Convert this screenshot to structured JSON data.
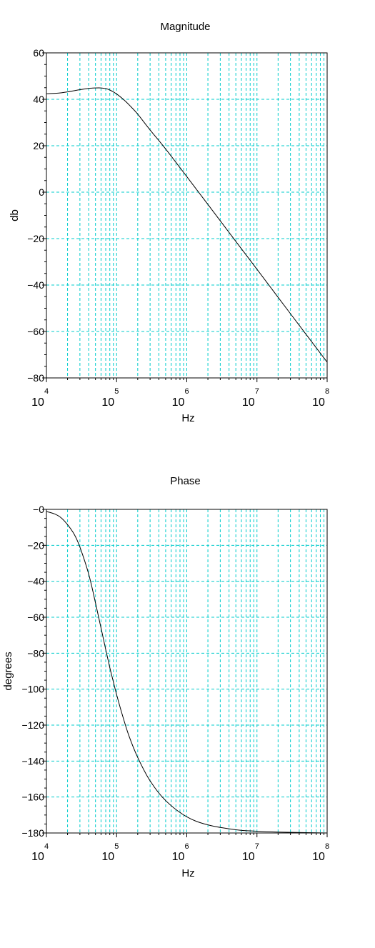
{
  "chart_data": [
    {
      "type": "line",
      "title": "Magnitude",
      "xlabel": "Hz",
      "ylabel": "db",
      "x_scale": "log",
      "xlim": [
        10000,
        100000000
      ],
      "ylim": [
        -80,
        60
      ],
      "x_ticks": [
        {
          "value": 10000,
          "base": "10",
          "exp": "4"
        },
        {
          "value": 100000,
          "base": "10",
          "exp": "5"
        },
        {
          "value": 1000000,
          "base": "10",
          "exp": "6"
        },
        {
          "value": 10000000,
          "base": "10",
          "exp": "7"
        },
        {
          "value": 100000000,
          "base": "10",
          "exp": "8"
        }
      ],
      "y_ticks": [
        "60",
        "40",
        "20",
        "0",
        "−20",
        "−40",
        "−60",
        "−80"
      ],
      "y_tick_values": [
        60,
        40,
        20,
        0,
        -20,
        -40,
        -60,
        -80
      ],
      "grid": true,
      "grid_color": "#00cccc",
      "line_color": "#000000",
      "series": [
        {
          "x": [
            10000,
            14000,
            20000,
            28000,
            40000,
            50000,
            60000,
            70000,
            80000,
            100000,
            130000,
            160000,
            200000,
            300000,
            500000,
            1000000,
            2000000,
            5000000,
            10000000,
            20000000,
            50000000,
            100000000
          ],
          "values": [
            42.4,
            42.6,
            43.2,
            44.0,
            44.7,
            44.9,
            44.9,
            44.6,
            44.0,
            42.3,
            39.5,
            36.8,
            33.6,
            26.8,
            18.6,
            6.7,
            -5.3,
            -21.2,
            -33.2,
            -45.3,
            -61.2,
            -73.2
          ]
        }
      ]
    },
    {
      "type": "line",
      "title": "Phase",
      "xlabel": "Hz",
      "ylabel": "degrees",
      "x_scale": "log",
      "xlim": [
        10000,
        100000000
      ],
      "ylim": [
        -180,
        0
      ],
      "x_ticks": [
        {
          "value": 10000,
          "base": "10",
          "exp": "4"
        },
        {
          "value": 100000,
          "base": "10",
          "exp": "5"
        },
        {
          "value": 1000000,
          "base": "10",
          "exp": "6"
        },
        {
          "value": 10000000,
          "base": "10",
          "exp": "7"
        },
        {
          "value": 100000000,
          "base": "10",
          "exp": "8"
        }
      ],
      "y_ticks": [
        "−0",
        "−20",
        "−40",
        "−60",
        "−80",
        "−100",
        "−120",
        "−140",
        "−160",
        "−180"
      ],
      "y_tick_values": [
        0,
        -20,
        -40,
        -60,
        -80,
        -100,
        -120,
        -140,
        -160,
        -180
      ],
      "grid": true,
      "grid_color": "#00cccc",
      "line_color": "#000000",
      "series": [
        {
          "x": [
            10000,
            13000,
            16000,
            20000,
            25000,
            30000,
            40000,
            50000,
            60000,
            70000,
            80000,
            90000,
            100000,
            120000,
            150000,
            200000,
            300000,
            500000,
            1000000,
            2000000,
            5000000,
            10000000,
            20000000,
            100000000
          ],
          "values": [
            -1.2,
            -2.5,
            -4.5,
            -8.5,
            -14,
            -21,
            -36,
            -52,
            -66,
            -78,
            -88,
            -96,
            -103,
            -114,
            -126,
            -138,
            -151,
            -162,
            -171,
            -175.5,
            -178.2,
            -179,
            -179.5,
            -180
          ]
        }
      ]
    }
  ]
}
